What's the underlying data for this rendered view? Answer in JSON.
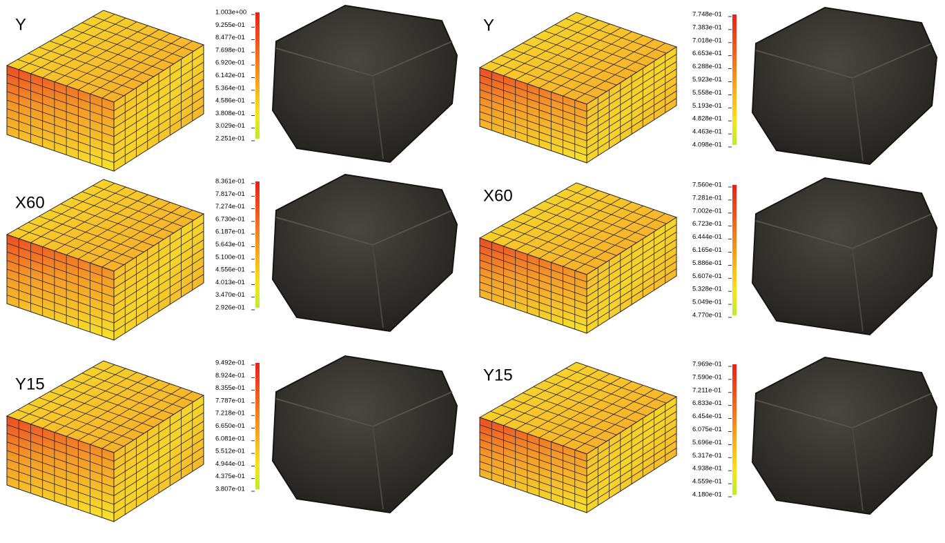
{
  "panels": [
    {
      "label": "Y",
      "legend": [
        "1.003e+00",
        "9.255e-01",
        "8.477e-01",
        "7.698e-01",
        "6.920e-01",
        "6.142e-01",
        "5.364e-01",
        "4.586e-01",
        "3.808e-01",
        "3.029e-01",
        "2.251e-01"
      ]
    },
    {
      "label": "Y",
      "legend": [
        "7.748e-01",
        "7.383e-01",
        "7.018e-01",
        "6.653e-01",
        "6.288e-01",
        "5.923e-01",
        "5.558e-01",
        "5.193e-01",
        "4.828e-01",
        "4.463e-01",
        "4.098e-01"
      ]
    },
    {
      "label": "X60",
      "legend": [
        "8.361e-01",
        "7.817e-01",
        "7.274e-01",
        "6.730e-01",
        "6.187e-01",
        "5.643e-01",
        "5.100e-01",
        "4.556e-01",
        "4.013e-01",
        "3.470e-01",
        "2.926e-01"
      ]
    },
    {
      "label": "X60",
      "legend": [
        "7.560e-01",
        "7.281e-01",
        "7.002e-01",
        "6.723e-01",
        "6.444e-01",
        "6.165e-01",
        "5.886e-01",
        "5.607e-01",
        "5.328e-01",
        "5.049e-01",
        "4.770e-01"
      ]
    },
    {
      "label": "Y15",
      "legend": [
        "9.492e-01",
        "8.924e-01",
        "8.355e-01",
        "7.787e-01",
        "7.218e-01",
        "6.650e-01",
        "6.081e-01",
        "5.512e-01",
        "4.944e-01",
        "4.375e-01",
        "3.807e-01"
      ]
    },
    {
      "label": "Y15",
      "legend": [
        "7.969e-01",
        "7.590e-01",
        "7.211e-01",
        "6.833e-01",
        "6.454e-01",
        "6.075e-01",
        "5.696e-01",
        "5.317e-01",
        "4.938e-01",
        "4.559e-01",
        "4.180e-01"
      ]
    }
  ]
}
